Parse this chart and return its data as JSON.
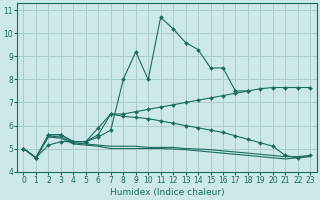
{
  "xlabel": "Humidex (Indice chaleur)",
  "background_color": "#cce8e8",
  "grid_color": "#aacccc",
  "line_color": "#1a6b60",
  "xlim": [
    -0.5,
    23.5
  ],
  "ylim": [
    4.0,
    11.3
  ],
  "xticks": [
    0,
    1,
    2,
    3,
    4,
    5,
    6,
    7,
    8,
    9,
    10,
    11,
    12,
    13,
    14,
    15,
    16,
    17,
    18,
    19,
    20,
    21,
    22,
    23
  ],
  "yticks": [
    4,
    5,
    6,
    7,
    8,
    9,
    10,
    11
  ],
  "series": [
    {
      "x": [
        0,
        1,
        2,
        3,
        4,
        5,
        6,
        7,
        8,
        9,
        10,
        11,
        12,
        13,
        14,
        15,
        16,
        17,
        18
      ],
      "y": [
        5.0,
        4.6,
        5.6,
        5.6,
        5.3,
        5.3,
        5.5,
        5.8,
        8.0,
        9.2,
        8.0,
        10.7,
        10.2,
        9.6,
        9.3,
        8.5,
        8.5,
        7.5,
        7.5
      ],
      "marker": true
    },
    {
      "x": [
        0,
        1,
        2,
        3,
        4,
        5,
        6,
        7,
        8,
        9,
        10,
        11,
        12,
        13,
        14,
        15,
        16,
        17,
        18,
        19,
        20,
        21,
        22,
        23
      ],
      "y": [
        5.0,
        4.6,
        5.15,
        5.3,
        5.3,
        5.3,
        5.6,
        6.5,
        6.5,
        6.6,
        6.7,
        6.8,
        6.9,
        7.0,
        7.1,
        7.2,
        7.3,
        7.4,
        7.5,
        7.6,
        7.65,
        7.65,
        7.65,
        7.65
      ],
      "marker": true
    },
    {
      "x": [
        0,
        1,
        2,
        3,
        4,
        5,
        6,
        7,
        8,
        9,
        10,
        11,
        12,
        13,
        14,
        15,
        16,
        17,
        18,
        19,
        20,
        21,
        22,
        23
      ],
      "y": [
        5.0,
        4.6,
        5.6,
        5.6,
        5.3,
        5.3,
        5.9,
        6.5,
        6.4,
        6.35,
        6.3,
        6.2,
        6.1,
        6.0,
        5.9,
        5.8,
        5.7,
        5.55,
        5.4,
        5.25,
        5.1,
        4.7,
        4.6,
        4.7
      ],
      "marker": true
    },
    {
      "x": [
        0,
        1,
        2,
        3,
        4,
        5,
        6,
        7,
        8,
        9,
        10,
        11,
        12,
        13,
        14,
        15,
        16,
        17,
        18,
        19,
        20,
        21,
        22,
        23
      ],
      "y": [
        5.0,
        4.6,
        5.55,
        5.5,
        5.25,
        5.2,
        5.15,
        5.1,
        5.1,
        5.1,
        5.05,
        5.05,
        5.05,
        5.0,
        4.98,
        4.95,
        4.9,
        4.85,
        4.8,
        4.75,
        4.7,
        4.65,
        4.65,
        4.7
      ],
      "marker": false
    },
    {
      "x": [
        0,
        1,
        2,
        3,
        4,
        5,
        6,
        7,
        8,
        9,
        10,
        11,
        12,
        13,
        14,
        15,
        16,
        17,
        18,
        19,
        20,
        21,
        22,
        23
      ],
      "y": [
        5.0,
        4.6,
        5.5,
        5.45,
        5.2,
        5.15,
        5.1,
        5.0,
        5.0,
        5.0,
        5.0,
        5.0,
        4.98,
        4.95,
        4.9,
        4.85,
        4.8,
        4.75,
        4.7,
        4.65,
        4.6,
        4.55,
        4.6,
        4.65
      ],
      "marker": false
    }
  ]
}
